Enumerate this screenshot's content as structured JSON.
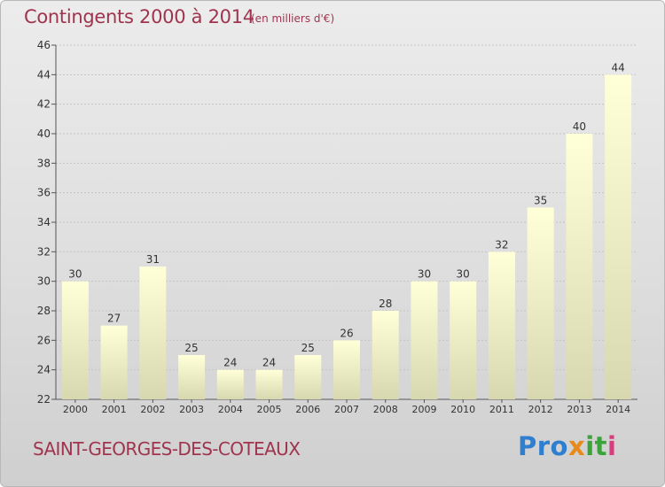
{
  "chart_data": {
    "type": "bar",
    "title": "Contingents 2000 à 2014",
    "unit_note": "(en milliers d'€)",
    "categories": [
      "2000",
      "2001",
      "2002",
      "2003",
      "2004",
      "2005",
      "2006",
      "2007",
      "2008",
      "2009",
      "2010",
      "2011",
      "2012",
      "2013",
      "2014"
    ],
    "values": [
      30,
      27,
      31,
      25,
      24,
      24,
      25,
      26,
      28,
      30,
      30,
      32,
      35,
      40,
      44
    ],
    "ylim": [
      22,
      46
    ],
    "yticks": [
      22,
      24,
      26,
      28,
      30,
      32,
      34,
      36,
      38,
      40,
      42,
      44,
      46
    ],
    "grid": true,
    "bar_color_top": "#ffffd8",
    "bar_color_bottom": "#d8d8b0",
    "title_color": "#a0344f"
  },
  "footer": {
    "place": "SAINT-GEORGES-DES-COTEAUX"
  },
  "logo": {
    "text": "Proxiti",
    "parts": [
      "Pro",
      "x",
      "it",
      "i"
    ]
  }
}
